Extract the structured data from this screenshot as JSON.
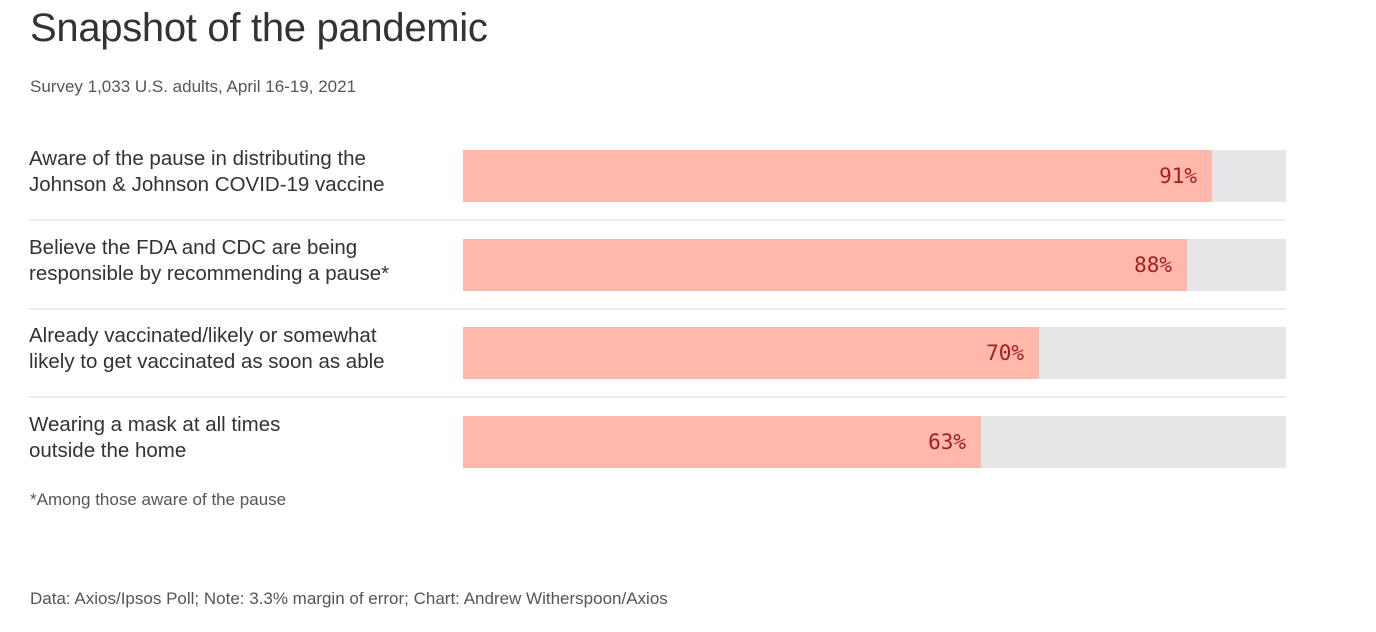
{
  "title": "Snapshot of the pandemic",
  "subtitle": "Survey 1,033 U.S. adults, April 16-19, 2021",
  "footnote": "*Among those aware of the pause",
  "source": "Data: Axios/Ipsos Poll; Note: 3.3% margin of error; Chart: Andrew Witherspoon/Axios",
  "colors": {
    "bar": "#ffb8aa",
    "track": "#e6e6e8",
    "value_text": "#a51d1d"
  },
  "chart_data": {
    "type": "bar",
    "orientation": "horizontal",
    "title": "Snapshot of the pandemic",
    "subtitle": "Survey 1,033 U.S. adults, April 16-19, 2021",
    "xlim": [
      0,
      100
    ],
    "grid": false,
    "legend": "none",
    "categories": [
      [
        "Aware of the pause in distributing the",
        "Johnson & Johnson COVID-19 vaccine"
      ],
      [
        "Believe the FDA and CDC are being",
        "responsible by recommending a pause*"
      ],
      [
        "Already vaccinated/likely or somewhat",
        "likely to get vaccinated as soon as able"
      ],
      [
        "Wearing a mask at all times",
        "outside the home"
      ]
    ],
    "values": [
      91,
      88,
      70,
      63
    ],
    "value_labels": [
      "91%",
      "88%",
      "70%",
      "63%"
    ]
  }
}
